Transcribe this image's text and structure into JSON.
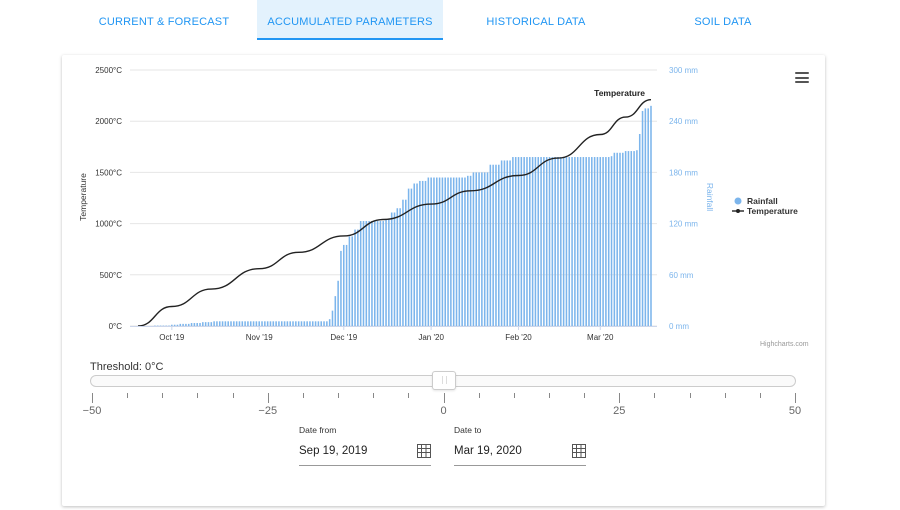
{
  "tabs": [
    {
      "label": "CURRENT & FORECAST",
      "active": false
    },
    {
      "label": "ACCUMULATED PARAMETERS",
      "active": true
    },
    {
      "label": "HISTORICAL DATA",
      "active": false
    },
    {
      "label": "SOIL DATA",
      "active": false
    }
  ],
  "chart": {
    "credit": "Highcharts.com",
    "menu_icon": "hamburger-menu-icon"
  },
  "chart_data": {
    "type": "bar+line",
    "title": "",
    "x_tick_labels": [
      "Oct '19",
      "Nov '19",
      "Dec '19",
      "Jan '20",
      "Feb '20",
      "Mar '20"
    ],
    "x_range": [
      "2019-09-19",
      "2020-03-19"
    ],
    "left_axis": {
      "label": "Temperature",
      "ticks": [
        "0°C",
        "500°C",
        "1000°C",
        "1500°C",
        "2000°C",
        "2500°C"
      ],
      "ylim": [
        0,
        2500
      ]
    },
    "right_axis": {
      "label": "Rainfall",
      "ticks": [
        "0 mm",
        "60 mm",
        "120 mm",
        "180 mm",
        "240 mm",
        "300 mm"
      ],
      "ylim": [
        0,
        300
      ]
    },
    "legend": {
      "placement": "right",
      "items": [
        {
          "name": "Rainfall",
          "color": "#7cb5ec",
          "marker": "circle"
        },
        {
          "name": "Temperature",
          "color": "#222222",
          "marker": "line"
        }
      ]
    },
    "series": [
      {
        "name": "Rainfall",
        "type": "column",
        "axis": "right",
        "color": "#7cb5ec",
        "points": [
          [
            "2019-09-19",
            0
          ],
          [
            "2019-09-25",
            0.5
          ],
          [
            "2019-10-01",
            1.5
          ],
          [
            "2019-10-04",
            2.5
          ],
          [
            "2019-10-08",
            3.5
          ],
          [
            "2019-10-12",
            4.5
          ],
          [
            "2019-10-16",
            5.5
          ],
          [
            "2019-10-22",
            5.5
          ],
          [
            "2019-11-25",
            5.5
          ],
          [
            "2019-11-26",
            8
          ],
          [
            "2019-11-27",
            18
          ],
          [
            "2019-11-28",
            35
          ],
          [
            "2019-11-29",
            53
          ],
          [
            "2019-11-30",
            88
          ],
          [
            "2019-12-01",
            95
          ],
          [
            "2019-12-03",
            105
          ],
          [
            "2019-12-05",
            113
          ],
          [
            "2019-12-07",
            123
          ],
          [
            "2019-12-16",
            125
          ],
          [
            "2019-12-18",
            133
          ],
          [
            "2019-12-20",
            138
          ],
          [
            "2019-12-22",
            148
          ],
          [
            "2019-12-24",
            161
          ],
          [
            "2019-12-26",
            167
          ],
          [
            "2019-12-28",
            170
          ],
          [
            "2019-12-31",
            174
          ],
          [
            "2020-01-14",
            176
          ],
          [
            "2020-01-16",
            180
          ],
          [
            "2020-01-22",
            189
          ],
          [
            "2020-01-26",
            194
          ],
          [
            "2020-01-30",
            198
          ],
          [
            "2020-03-05",
            199
          ],
          [
            "2020-03-06",
            203
          ],
          [
            "2020-03-10",
            205
          ],
          [
            "2020-03-14",
            206
          ],
          [
            "2020-03-15",
            225
          ],
          [
            "2020-03-16",
            252
          ],
          [
            "2020-03-17",
            255
          ],
          [
            "2020-03-19",
            258
          ]
        ]
      },
      {
        "name": "Temperature",
        "type": "line",
        "axis": "left",
        "color": "#222222",
        "points": [
          [
            "2019-09-19",
            0
          ],
          [
            "2019-10-01",
            190
          ],
          [
            "2019-10-15",
            360
          ],
          [
            "2019-11-01",
            560
          ],
          [
            "2019-11-15",
            720
          ],
          [
            "2019-12-01",
            880
          ],
          [
            "2019-12-15",
            1040
          ],
          [
            "2020-01-01",
            1190
          ],
          [
            "2020-01-15",
            1320
          ],
          [
            "2020-02-01",
            1470
          ],
          [
            "2020-02-15",
            1640
          ],
          [
            "2020-03-01",
            1870
          ],
          [
            "2020-03-10",
            2040
          ],
          [
            "2020-03-19",
            2210
          ]
        ]
      }
    ],
    "annotation": "Temperature"
  },
  "threshold": {
    "label": "Threshold: 0°C",
    "min": -50,
    "max": 50,
    "value": 0,
    "major_tick_labels": [
      "-50",
      "-25",
      "0",
      "25",
      "50"
    ],
    "minor_step": 5
  },
  "dates": {
    "from_label": "Date from",
    "from_value": "Sep 19, 2019",
    "to_label": "Date to",
    "to_value": "Mar 19, 2020",
    "icon": "calendar-grid-icon"
  }
}
